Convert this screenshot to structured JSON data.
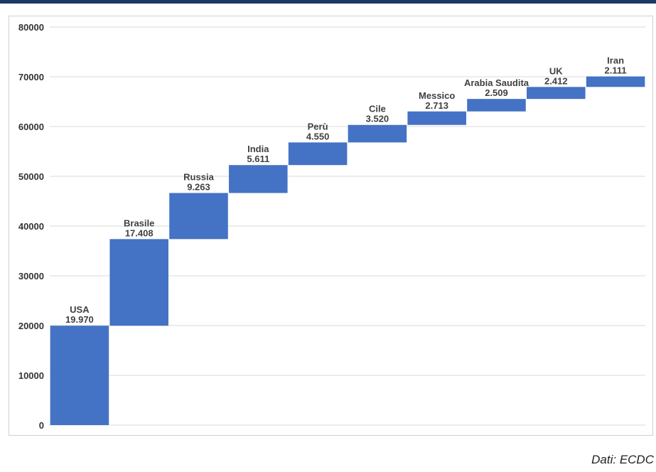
{
  "chart_data": {
    "type": "bar",
    "subtype": "waterfall",
    "categories": [
      "USA",
      "Brasile",
      "Russia",
      "India",
      "Perù",
      "Cile",
      "Messico",
      "Arabia Saudita",
      "UK",
      "Iran"
    ],
    "values": [
      19970,
      17408,
      9263,
      5611,
      4550,
      3520,
      2713,
      2509,
      2412,
      2111
    ],
    "value_labels": [
      "19.970",
      "17.408",
      "9.263",
      "5.611",
      "4.550",
      "3.520",
      "2.713",
      "2.509",
      "2.412",
      "2.111"
    ],
    "ylim": [
      0,
      80000
    ],
    "yticks": [
      "0",
      "10000",
      "20000",
      "30000",
      "40000",
      "50000",
      "60000",
      "70000",
      "80000"
    ],
    "title": "",
    "xlabel": "",
    "ylabel": "",
    "grid": true,
    "legend": "none",
    "bar_color": "#4472c4",
    "grid_color": "#d9d9d9"
  },
  "source": {
    "text": "Dati: ECDC"
  },
  "colors": {
    "header_bar": "#1f3864"
  }
}
